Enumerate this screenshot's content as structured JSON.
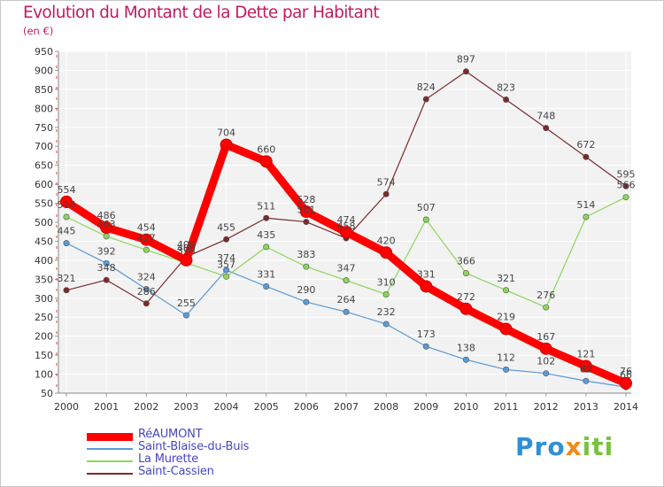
{
  "title": "Evolution du Montant de la Dette par Habitant",
  "subtitle": "(en €)",
  "logo": {
    "part1": "Pro",
    "part2": "x",
    "part3": "iti"
  },
  "chart_data": {
    "type": "line",
    "title": "Evolution du Montant de la Dette par Habitant",
    "subtitle": "(en €)",
    "ylim": [
      50,
      950
    ],
    "yticks": [
      50,
      100,
      150,
      200,
      250,
      300,
      350,
      400,
      450,
      500,
      550,
      600,
      650,
      700,
      750,
      800,
      850,
      900,
      950
    ],
    "grid": true,
    "legend_position": "bottom-left",
    "categories": [
      "2000",
      "2001",
      "2002",
      "2003",
      "2004",
      "2005",
      "2006",
      "2007",
      "2008",
      "2009",
      "2010",
      "2011",
      "2012",
      "2013",
      "2014"
    ],
    "series": [
      {
        "name": "RéAUMONT",
        "color": "#ff0000",
        "values": [
          554,
          486,
          454,
          400,
          704,
          660,
          528,
          474,
          420,
          331,
          272,
          219,
          167,
          121,
          76
        ]
      },
      {
        "name": "Saint-Blaise-du-Buis",
        "color": "#5b9bd5",
        "values": [
          445,
          392,
          324,
          255,
          374,
          331,
          290,
          264,
          232,
          173,
          138,
          112,
          102,
          82,
          66
        ]
      },
      {
        "name": "La Murette",
        "color": "#8cd65a",
        "values": [
          514,
          463,
          427,
          393,
          357,
          435,
          383,
          347,
          310,
          507,
          366,
          321,
          276,
          514,
          566
        ]
      },
      {
        "name": "Saint-Cassien",
        "color": "#7a2b2b",
        "values": [
          321,
          348,
          286,
          409,
          455,
          511,
          501,
          458,
          574,
          824,
          897,
          823,
          748,
          672,
          595
        ]
      }
    ]
  }
}
